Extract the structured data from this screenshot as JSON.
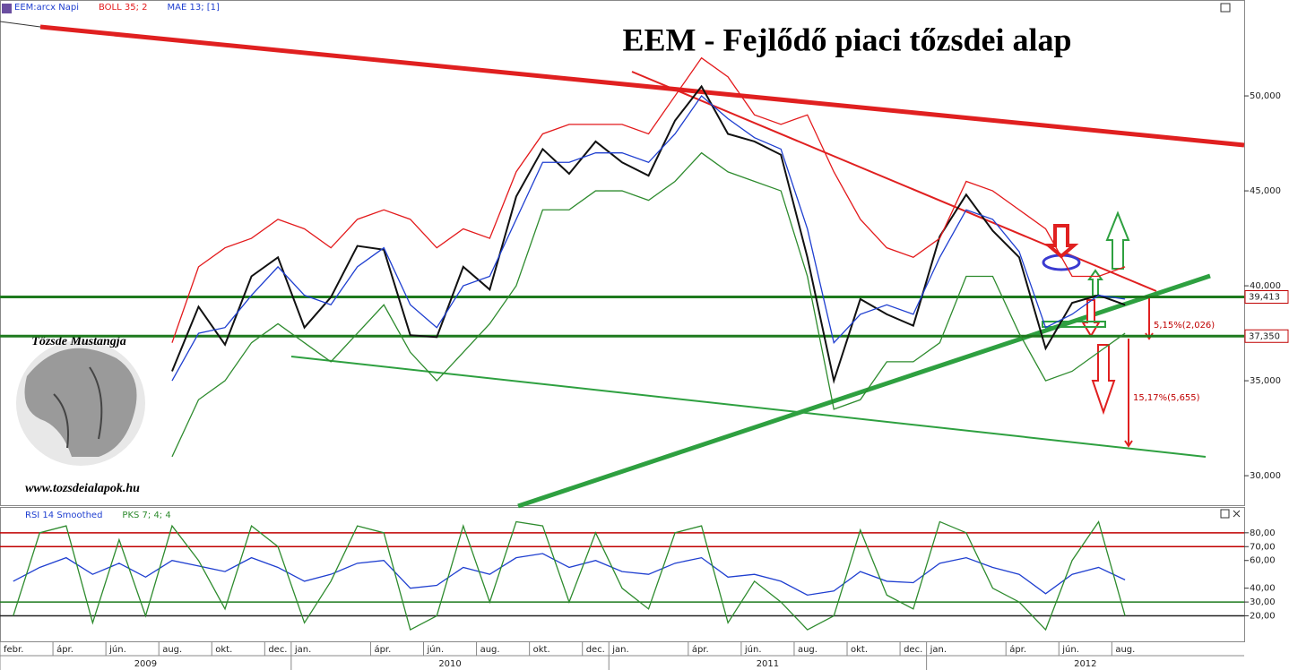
{
  "chart_data": [
    {
      "type": "line",
      "title": "EEM - Fejlődő piaci tőzsdei alap",
      "series": [
        {
          "name": "EEM:arcx Napi",
          "color": "#111111",
          "values": [
            null,
            null,
            null,
            null,
            null,
            null,
            35.5,
            38.9,
            36.9,
            40.5,
            41.5,
            37.8,
            39.4,
            42.1,
            41.9,
            37.4,
            37.3,
            41.0,
            39.8,
            44.7,
            47.2,
            45.9,
            47.6,
            46.5,
            45.8,
            48.7,
            50.5,
            48.0,
            47.6,
            46.9,
            41.5,
            35.0,
            39.3,
            38.5,
            37.9,
            42.6,
            44.8,
            42.9,
            41.5,
            36.7,
            39.1,
            39.5,
            39.0,
            null,
            null,
            null,
            null
          ]
        },
        {
          "name": "BOLL 35; 2",
          "color": "#e31a1c",
          "values": [
            null,
            null,
            null,
            null,
            null,
            null,
            37,
            41,
            42,
            42.5,
            43.5,
            43,
            42,
            43.5,
            44,
            43.5,
            42,
            43,
            42.5,
            46,
            48,
            48.5,
            48.5,
            48.5,
            48,
            50,
            52,
            51,
            49,
            48.5,
            49,
            46,
            43.5,
            42,
            41.5,
            42.5,
            45.5,
            45,
            44,
            43,
            40.5,
            40.5,
            41,
            null,
            null,
            null,
            null
          ]
        },
        {
          "color": "#2e8b2e",
          "values": [
            null,
            null,
            null,
            null,
            null,
            null,
            31,
            34,
            35,
            37,
            38,
            37,
            36,
            37.5,
            39,
            36.5,
            35,
            36.5,
            38,
            40,
            44,
            44,
            45,
            45,
            44.5,
            45.5,
            47,
            46,
            45.5,
            45,
            40.5,
            33.5,
            34,
            36,
            36,
            37,
            40.5,
            40.5,
            37.5,
            35,
            35.5,
            36.5,
            37.5,
            null,
            null,
            null,
            null
          ]
        },
        {
          "name": "MAE 13; [1]",
          "color": "#1f3fd0",
          "values": [
            null,
            null,
            null,
            null,
            null,
            null,
            35,
            37.5,
            37.8,
            39.5,
            41,
            39.5,
            39,
            41,
            42,
            39,
            37.8,
            40,
            40.5,
            43.5,
            46.5,
            46.5,
            47,
            47,
            46.5,
            48,
            50,
            48.8,
            47.8,
            47.2,
            43,
            37,
            38.5,
            39,
            38.5,
            41.5,
            44,
            43.5,
            41.8,
            37.8,
            38.5,
            39.5,
            39.3,
            null,
            null,
            null,
            null
          ]
        }
      ],
      "ylim": [
        28.4,
        55.05
      ],
      "yticks": [
        {
          "value": 30,
          "label": "30,000"
        },
        {
          "value": 35,
          "label": "35,000"
        },
        {
          "value": 40,
          "label": "40,000"
        },
        {
          "value": 45,
          "label": "45,000"
        },
        {
          "value": 50,
          "label": "50,000"
        }
      ],
      "levels": [
        {
          "value": 39.413,
          "label": "39,413",
          "color": "#1e7a1e"
        },
        {
          "value": 37.35,
          "label": "37,350",
          "color": "#1e7a1e"
        }
      ],
      "annotations": [
        "5,15%(2,026)",
        "15,17%(5,655)"
      ],
      "watermark": {
        "title": "Tőzsde Mustangja",
        "url": "www.tozsdeialapok.hu"
      }
    },
    {
      "type": "line",
      "series": [
        {
          "name": "RSI 14 Smoothed",
          "color": "#1f3fd0",
          "values": [
            45,
            55,
            62,
            50,
            58,
            48,
            60,
            56,
            52,
            62,
            55,
            45,
            50,
            58,
            60,
            40,
            42,
            55,
            50,
            62,
            65,
            55,
            60,
            52,
            50,
            58,
            62,
            48,
            50,
            45,
            35,
            38,
            52,
            45,
            44,
            58,
            62,
            55,
            50,
            36,
            50,
            55,
            46,
            null,
            null,
            null,
            null
          ]
        },
        {
          "name": "PKS 7; 4; 4",
          "color": "#2e8b2e",
          "values": [
            20,
            80,
            85,
            15,
            75,
            20,
            85,
            60,
            25,
            85,
            70,
            15,
            45,
            85,
            80,
            10,
            20,
            85,
            30,
            88,
            85,
            30,
            80,
            40,
            25,
            80,
            85,
            15,
            45,
            30,
            10,
            20,
            82,
            35,
            25,
            88,
            80,
            40,
            30,
            10,
            60,
            88,
            20,
            null,
            null,
            null,
            null
          ]
        }
      ],
      "ylim": [
        1.6,
        98
      ],
      "yticks": [
        {
          "value": 20,
          "label": "20,00"
        },
        {
          "value": 30,
          "label": "30,00"
        },
        {
          "value": 40,
          "label": "40,00"
        },
        {
          "value": 60,
          "label": "60,00"
        },
        {
          "value": 70,
          "label": "70,00"
        },
        {
          "value": 80,
          "label": "80,00"
        }
      ],
      "hlines": [
        {
          "value": 80,
          "color": "#c00000"
        },
        {
          "value": 70,
          "color": "#c00000"
        },
        {
          "value": 30,
          "color": "#1e7a1e"
        },
        {
          "value": 20,
          "color": "#222222"
        }
      ],
      "categories": [
        "febr.",
        null,
        "ápr.",
        null,
        "jún.",
        null,
        "aug.",
        null,
        "okt.",
        null,
        "dec.",
        "jan.",
        null,
        null,
        "ápr.",
        null,
        "jún.",
        null,
        "aug.",
        null,
        "okt.",
        null,
        "dec.",
        "jan.",
        null,
        null,
        "ápr.",
        null,
        "jún.",
        null,
        "aug.",
        null,
        "okt.",
        null,
        "dec.",
        "jan.",
        null,
        null,
        "ápr.",
        null,
        "jún.",
        null,
        "aug.",
        null,
        null,
        null,
        null
      ],
      "years": [
        "2009",
        "2010",
        "2011",
        "2012"
      ]
    }
  ]
}
